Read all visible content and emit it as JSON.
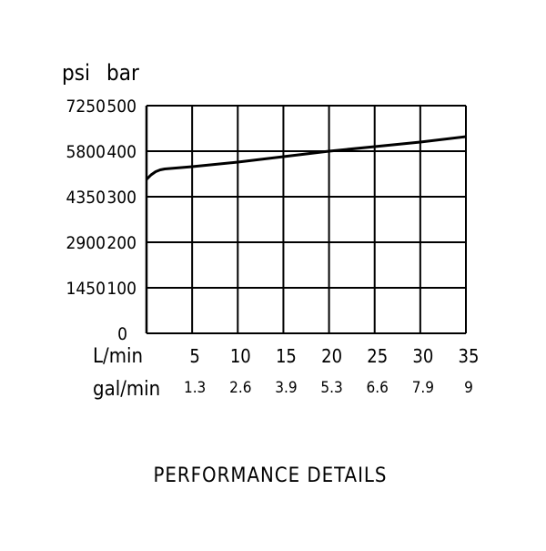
{
  "chart_data": {
    "type": "line",
    "title": "PERFORMANCE DETAILS",
    "y_unit_labels": [
      "psi",
      "bar"
    ],
    "x_unit_labels": [
      "L/min",
      "gal/min"
    ],
    "x_ticks": [
      5,
      10,
      15,
      20,
      25,
      30,
      35
    ],
    "x_secondary_ticks": [
      "1.3",
      "2.6",
      "3.9",
      "5.3",
      "6.6",
      "7.9",
      "9"
    ],
    "y_ticks_bar": [
      "0",
      "100",
      "200",
      "300",
      "400",
      "500"
    ],
    "y_ticks_psi": [
      "",
      "1450",
      "2900",
      "4350",
      "5800",
      "7250"
    ],
    "xlim": [
      0,
      35
    ],
    "ylim": [
      0,
      500
    ],
    "grid": true,
    "series": [
      {
        "x": [
          0,
          0.5,
          1,
          1.5,
          2,
          5,
          10,
          15,
          20,
          25,
          30,
          35
        ],
        "y": [
          338,
          348,
          355,
          359,
          361,
          366,
          376,
          388,
          400,
          410,
          420,
          432
        ],
        "color": "#000000"
      }
    ]
  }
}
